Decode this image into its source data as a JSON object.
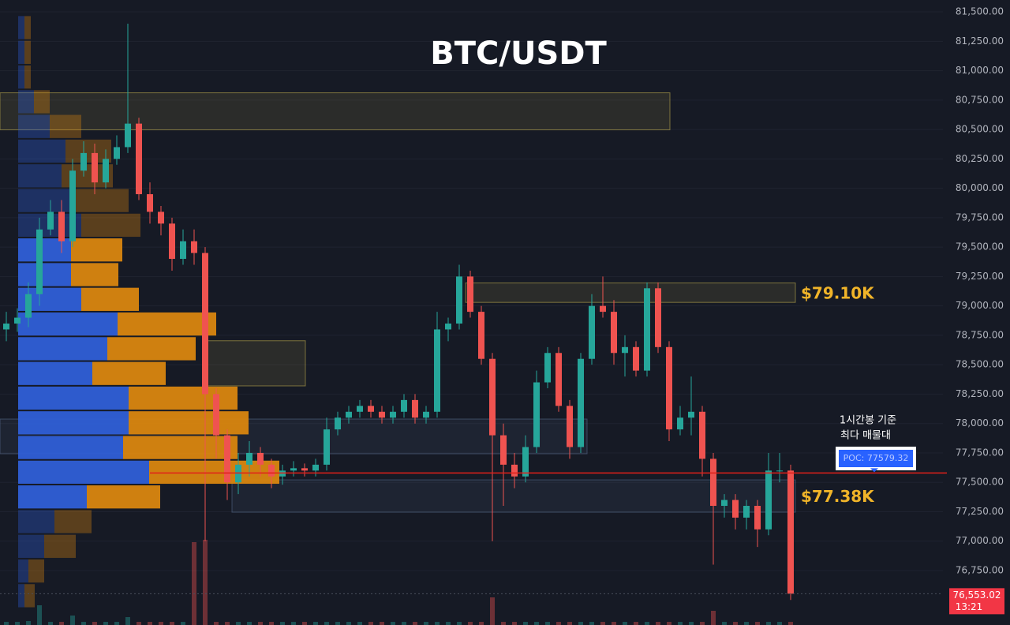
{
  "chart_data": {
    "type": "candlestick",
    "title": "BTC/USDT",
    "up_color": "#26a69a",
    "down_color": "#ef5350",
    "grid": true,
    "ylim": [
      76287,
      81601
    ],
    "yticks": [
      {
        "value": 76750,
        "label": "76,750.00"
      },
      {
        "value": 77000,
        "label": "77,000.00"
      },
      {
        "value": 77250,
        "label": "77,250.00"
      },
      {
        "value": 77500,
        "label": "77,500.00"
      },
      {
        "value": 77750,
        "label": "77,750.00"
      },
      {
        "value": 78000,
        "label": "78,000.00"
      },
      {
        "value": 78250,
        "label": "78,250.00"
      },
      {
        "value": 78500,
        "label": "78,500.00"
      },
      {
        "value": 78750,
        "label": "78,750.00"
      },
      {
        "value": 79000,
        "label": "79,000.00"
      },
      {
        "value": 79250,
        "label": "79,250.00"
      },
      {
        "value": 79500,
        "label": "79,500.00"
      },
      {
        "value": 79750,
        "label": "79,750.00"
      },
      {
        "value": 80000,
        "label": "80,000.00"
      },
      {
        "value": 80250,
        "label": "80,250.00"
      },
      {
        "value": 80500,
        "label": "80,500.00"
      },
      {
        "value": 80750,
        "label": "80,750.00"
      },
      {
        "value": 81000,
        "label": "81,000.00"
      },
      {
        "value": 81250,
        "label": "81,250.00"
      },
      {
        "value": 81500,
        "label": "81,500.00"
      }
    ],
    "open": [
      78800,
      78850,
      78900,
      79100,
      79650,
      79800,
      79550,
      80150,
      80300,
      80050,
      80250,
      80350,
      80550,
      79950,
      79800,
      79700,
      79400,
      79550,
      79450,
      78250,
      77900,
      77500,
      77650,
      77750,
      77650,
      77550,
      77600,
      77620,
      77600,
      77650,
      77950,
      78050,
      78100,
      78150,
      78100,
      78050,
      78100,
      78200,
      78050,
      78100,
      78800,
      78850,
      79250,
      78950,
      78550,
      77900,
      77650,
      77550,
      77800,
      78350,
      78600,
      78150,
      77800,
      78550,
      79000,
      78950,
      78600,
      78650,
      78450,
      79150,
      78650,
      77950,
      78050,
      78100,
      77700,
      77300,
      77350,
      77200,
      77300,
      77100,
      77600,
      77600
    ],
    "high": [
      78950,
      78980,
      79200,
      79750,
      79900,
      79900,
      80250,
      80400,
      80380,
      80330,
      80450,
      81400,
      80600,
      80050,
      79850,
      79750,
      79650,
      79650,
      79500,
      78300,
      77950,
      77750,
      77850,
      77800,
      77700,
      77650,
      77680,
      77660,
      77700,
      78050,
      78100,
      78150,
      78200,
      78200,
      78150,
      78150,
      78250,
      78250,
      78150,
      78950,
      78900,
      79350,
      79300,
      79000,
      78600,
      78000,
      77750,
      77900,
      78450,
      78650,
      78650,
      78200,
      78600,
      79100,
      79250,
      79050,
      78750,
      78700,
      79200,
      79200,
      78700,
      78150,
      78400,
      78150,
      77750,
      77400,
      77400,
      77350,
      77350,
      77750,
      77750,
      77650
    ],
    "low": [
      78700,
      78780,
      78820,
      79000,
      79600,
      79450,
      79500,
      80100,
      79950,
      80000,
      80200,
      80300,
      79900,
      79700,
      79600,
      79300,
      79350,
      79350,
      77000,
      77700,
      77350,
      77400,
      77550,
      77550,
      77450,
      77480,
      77550,
      77550,
      77550,
      77600,
      77900,
      78000,
      78050,
      78050,
      78000,
      78000,
      78050,
      78000,
      78000,
      78050,
      78700,
      78800,
      78900,
      78500,
      77000,
      77300,
      77450,
      77500,
      77750,
      78300,
      78100,
      77700,
      77750,
      78500,
      78900,
      78500,
      78400,
      78400,
      78400,
      78600,
      77850,
      77900,
      77900,
      77550,
      76800,
      77200,
      77100,
      77100,
      76950,
      77050,
      77500,
      76500
    ],
    "close": [
      78850,
      78900,
      79100,
      79650,
      79800,
      79550,
      80150,
      80300,
      80050,
      80250,
      80350,
      80550,
      79950,
      79800,
      79700,
      79400,
      79550,
      79450,
      78250,
      77900,
      77500,
      77650,
      77750,
      77650,
      77550,
      77600,
      77620,
      77600,
      77650,
      77950,
      78050,
      78100,
      78150,
      78100,
      78050,
      78100,
      78200,
      78050,
      78100,
      78800,
      78850,
      79250,
      78950,
      78550,
      77900,
      77650,
      77550,
      77800,
      78350,
      78600,
      78150,
      77800,
      78550,
      79000,
      78950,
      78600,
      78650,
      78450,
      79150,
      78650,
      77950,
      78050,
      78100,
      77700,
      77300,
      77350,
      77200,
      77300,
      77100,
      77600,
      77600,
      76553.02
    ],
    "volume": [
      4,
      4,
      5,
      25,
      4,
      4,
      12,
      4,
      4,
      4,
      4,
      10,
      4,
      4,
      4,
      4,
      4,
      105,
      108,
      4,
      4,
      4,
      4,
      4,
      4,
      4,
      4,
      4,
      4,
      4,
      4,
      4,
      4,
      4,
      4,
      4,
      4,
      4,
      4,
      4,
      4,
      4,
      4,
      4,
      35,
      4,
      4,
      4,
      4,
      4,
      4,
      4,
      4,
      4,
      4,
      4,
      4,
      4,
      4,
      4,
      4,
      4,
      4,
      4,
      18,
      4,
      4,
      4,
      4,
      4,
      4,
      4
    ],
    "volume_profile": {
      "levels": [
        81366,
        81156,
        80946,
        80736,
        80526,
        80316,
        80106,
        79896,
        79686,
        79476,
        79266,
        79056,
        78846,
        78636,
        78426,
        78216,
        78006,
        77796,
        77586,
        77376,
        77166,
        76956,
        76746,
        76536
      ],
      "buy": [
        8,
        8,
        8,
        20,
        40,
        60,
        55,
        65,
        80,
        67,
        67,
        80,
        126,
        113,
        94,
        140,
        140,
        133,
        166,
        87,
        46,
        33,
        13,
        8
      ],
      "sell": [
        8,
        8,
        8,
        20,
        40,
        58,
        65,
        75,
        75,
        65,
        60,
        73,
        125,
        112,
        93,
        138,
        152,
        145,
        165,
        93,
        47,
        40,
        20,
        13
      ],
      "buy_color": "#2f5fd6",
      "sell_color": "#d9860f",
      "value_area": [
        77376,
        79476
      ]
    },
    "zones": [
      {
        "top": 80812,
        "bottom": 80497,
        "color": "#c8b450"
      },
      {
        "top": 79195,
        "bottom": 79030,
        "color": "#c8b450",
        "label": "$79.10K"
      },
      {
        "top": 78704,
        "bottom": 78320,
        "color": "#c8b450"
      },
      {
        "top": 78038,
        "bottom": 77743,
        "color": "#5a7090"
      },
      {
        "top": 77521,
        "bottom": 77246,
        "color": "#5a7090",
        "label": "$77.38K"
      }
    ],
    "poc": {
      "value": 77579.32,
      "label": "POC: 77579.32",
      "color": "#e0201a"
    },
    "notes": [
      "1시간봉 기준",
      "최다 매물대"
    ],
    "last_price": {
      "value": 76553.02,
      "label": "76,553.02"
    },
    "countdown": "13:21"
  }
}
